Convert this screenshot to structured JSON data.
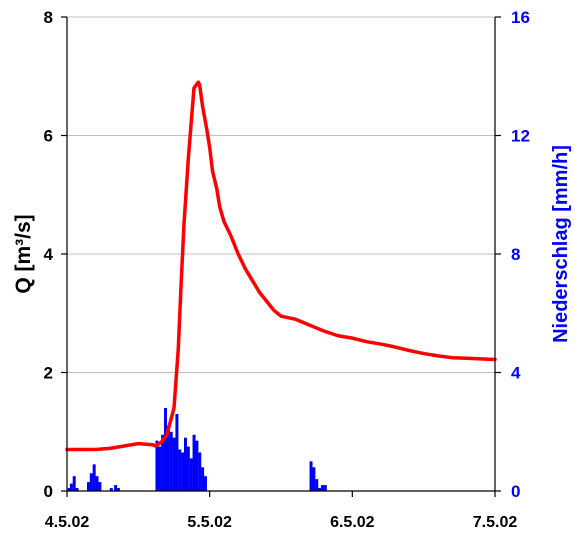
{
  "chart_data": {
    "type": "line+bar",
    "x_ticks": [
      "4.5.02",
      "5.5.02",
      "6.5.02",
      "7.5.02"
    ],
    "x_range": [
      0,
      3.0
    ],
    "y_left": {
      "label": "Q [m³/s]",
      "range": [
        0,
        8
      ],
      "ticks": [
        "0",
        "2",
        "4",
        "6",
        "8"
      ]
    },
    "y_right": {
      "label": "Niederschlag [mm/h]",
      "range": [
        0,
        16
      ],
      "ticks": [
        "0",
        "4",
        "8",
        "12",
        "16"
      ]
    },
    "grid": "horizontal",
    "series": [
      {
        "type": "line",
        "axis": "left",
        "color": "#ff0000",
        "points": [
          [
            0.0,
            0.7
          ],
          [
            0.1,
            0.7
          ],
          [
            0.2,
            0.7
          ],
          [
            0.3,
            0.72
          ],
          [
            0.4,
            0.76
          ],
          [
            0.5,
            0.8
          ],
          [
            0.6,
            0.78
          ],
          [
            0.62,
            0.76
          ],
          [
            0.66,
            0.82
          ],
          [
            0.7,
            0.95
          ],
          [
            0.75,
            1.4
          ],
          [
            0.78,
            2.4
          ],
          [
            0.8,
            3.5
          ],
          [
            0.82,
            4.5
          ],
          [
            0.85,
            5.6
          ],
          [
            0.87,
            6.2
          ],
          [
            0.88,
            6.5
          ],
          [
            0.89,
            6.8
          ],
          [
            0.92,
            6.9
          ],
          [
            0.93,
            6.85
          ],
          [
            0.95,
            6.5
          ],
          [
            0.98,
            6.1
          ],
          [
            1.0,
            5.8
          ],
          [
            1.02,
            5.4
          ],
          [
            1.05,
            5.1
          ],
          [
            1.07,
            4.8
          ],
          [
            1.1,
            4.55
          ],
          [
            1.15,
            4.3
          ],
          [
            1.2,
            4.0
          ],
          [
            1.25,
            3.75
          ],
          [
            1.3,
            3.55
          ],
          [
            1.35,
            3.35
          ],
          [
            1.4,
            3.2
          ],
          [
            1.45,
            3.05
          ],
          [
            1.5,
            2.95
          ],
          [
            1.6,
            2.9
          ],
          [
            1.65,
            2.85
          ],
          [
            1.7,
            2.8
          ],
          [
            1.75,
            2.75
          ],
          [
            1.8,
            2.7
          ],
          [
            1.9,
            2.62
          ],
          [
            2.0,
            2.58
          ],
          [
            2.1,
            2.52
          ],
          [
            2.2,
            2.48
          ],
          [
            2.3,
            2.43
          ],
          [
            2.4,
            2.37
          ],
          [
            2.5,
            2.32
          ],
          [
            2.6,
            2.28
          ],
          [
            2.7,
            2.25
          ],
          [
            2.8,
            2.24
          ],
          [
            2.9,
            2.23
          ],
          [
            3.0,
            2.22
          ]
        ]
      },
      {
        "type": "bar",
        "axis": "right",
        "color": "#0000ff",
        "bar_width": 0.021,
        "bars": [
          [
            0.005,
            0.1
          ],
          [
            0.02,
            0.25
          ],
          [
            0.04,
            0.5
          ],
          [
            0.06,
            0.1
          ],
          [
            0.14,
            0.3
          ],
          [
            0.16,
            0.6
          ],
          [
            0.18,
            0.9
          ],
          [
            0.2,
            0.5
          ],
          [
            0.22,
            0.3
          ],
          [
            0.3,
            0.1
          ],
          [
            0.33,
            0.2
          ],
          [
            0.35,
            0.1
          ],
          [
            0.62,
            1.7
          ],
          [
            0.64,
            1.5
          ],
          [
            0.66,
            1.9
          ],
          [
            0.68,
            2.8
          ],
          [
            0.7,
            2.2
          ],
          [
            0.72,
            2.0
          ],
          [
            0.74,
            1.8
          ],
          [
            0.76,
            2.6
          ],
          [
            0.78,
            1.4
          ],
          [
            0.8,
            1.3
          ],
          [
            0.82,
            1.8
          ],
          [
            0.84,
            1.5
          ],
          [
            0.86,
            1.1
          ],
          [
            0.88,
            1.9
          ],
          [
            0.9,
            1.7
          ],
          [
            0.92,
            1.3
          ],
          [
            0.94,
            0.8
          ],
          [
            0.96,
            0.5
          ],
          [
            1.7,
            1.0
          ],
          [
            1.72,
            0.8
          ],
          [
            1.74,
            0.4
          ],
          [
            1.76,
            0.1
          ],
          [
            1.78,
            0.2
          ],
          [
            1.8,
            0.2
          ]
        ]
      }
    ]
  }
}
